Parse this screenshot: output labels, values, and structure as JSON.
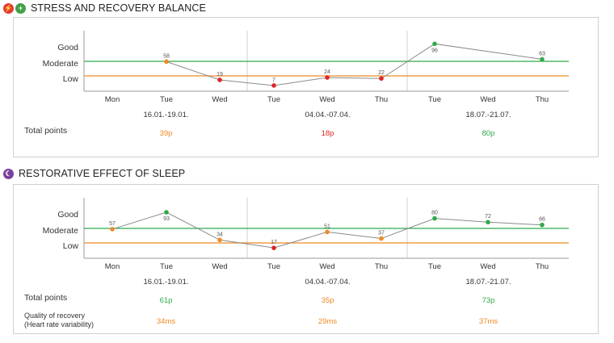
{
  "sections": [
    {
      "title": "STRESS AND RECOVERY BALANCE",
      "icons": [
        {
          "name": "lightning-icon",
          "color": "#e53935",
          "glyph": "⚡"
        },
        {
          "name": "plus-icon",
          "color": "#43a047",
          "glyph": "+"
        }
      ],
      "chart_data": {
        "type": "line",
        "y_categories": [
          "Good",
          "Moderate",
          "Low"
        ],
        "reference_lines": [
          {
            "level": "Moderate",
            "color": "#2eaa4a"
          },
          {
            "level": "Low",
            "color": "#ee8a23"
          }
        ],
        "x": [
          "Mon",
          "Tue",
          "Wed",
          "Tue",
          "Wed",
          "Thu",
          "Tue",
          "Wed",
          "Thu"
        ],
        "points": [
          {
            "index": 1,
            "value": 58,
            "label": "58",
            "color": "#ee8a23"
          },
          {
            "index": 2,
            "value": 19,
            "label": "19",
            "color": "#e02424"
          },
          {
            "index": 3,
            "value": 7,
            "label": "7",
            "color": "#e02424"
          },
          {
            "index": 4,
            "value": 24,
            "label": "24",
            "color": "#e02424"
          },
          {
            "index": 5,
            "value": 22,
            "label": "22",
            "color": "#e02424"
          },
          {
            "index": 6,
            "value": 96,
            "label": "96",
            "color": "#2eaa4a"
          },
          {
            "index": 8,
            "value": 63,
            "label": "63",
            "color": "#2eaa4a"
          }
        ],
        "groups": [
          {
            "label": "16.01.-19.01.",
            "start": 0,
            "end": 2
          },
          {
            "label": "04.04.-07.04.",
            "start": 3,
            "end": 5
          },
          {
            "label": "18.07.-21.07.",
            "start": 6,
            "end": 8
          }
        ]
      },
      "rows": [
        {
          "label": "Total points",
          "values": [
            {
              "text": "39p",
              "color": "#ee8a23"
            },
            {
              "text": "18p",
              "color": "#e02424"
            },
            {
              "text": "80p",
              "color": "#2eaa4a"
            }
          ]
        }
      ]
    },
    {
      "title": "RESTORATIVE EFFECT OF SLEEP",
      "icons": [
        {
          "name": "moon-icon",
          "color": "#7b3f9e",
          "glyph": "☾"
        }
      ],
      "chart_data": {
        "type": "line",
        "y_categories": [
          "Good",
          "Moderate",
          "Low"
        ],
        "reference_lines": [
          {
            "level": "Moderate",
            "color": "#2eaa4a"
          },
          {
            "level": "Low",
            "color": "#ee8a23"
          }
        ],
        "x": [
          "Mon",
          "Tue",
          "Wed",
          "Tue",
          "Wed",
          "Thu",
          "Tue",
          "Wed",
          "Thu"
        ],
        "points": [
          {
            "index": 0,
            "value": 57,
            "label": "57",
            "color": "#ee8a23"
          },
          {
            "index": 1,
            "value": 93,
            "label": "93",
            "color": "#2eaa4a"
          },
          {
            "index": 2,
            "value": 34,
            "label": "34",
            "color": "#ee8a23"
          },
          {
            "index": 3,
            "value": 17,
            "label": "17",
            "color": "#e02424"
          },
          {
            "index": 4,
            "value": 51,
            "label": "51",
            "color": "#ee8a23"
          },
          {
            "index": 5,
            "value": 37,
            "label": "37",
            "color": "#ee8a23"
          },
          {
            "index": 6,
            "value": 80,
            "label": "80",
            "color": "#2eaa4a"
          },
          {
            "index": 7,
            "value": 72,
            "label": "72",
            "color": "#2eaa4a"
          },
          {
            "index": 8,
            "value": 66,
            "label": "66",
            "color": "#2eaa4a"
          }
        ],
        "groups": [
          {
            "label": "16.01.-19.01.",
            "start": 0,
            "end": 2
          },
          {
            "label": "04.04.-07.04.",
            "start": 3,
            "end": 5
          },
          {
            "label": "18.07.-21.07.",
            "start": 6,
            "end": 8
          }
        ]
      },
      "rows": [
        {
          "label": "Total points",
          "values": [
            {
              "text": "61p",
              "color": "#2eaa4a"
            },
            {
              "text": "35p",
              "color": "#ee8a23"
            },
            {
              "text": "73p",
              "color": "#2eaa4a"
            }
          ]
        },
        {
          "label": "Quality of recovery",
          "sublabel": "(Heart rate variability)",
          "values": [
            {
              "text": "34ms",
              "color": "#ee8a23"
            },
            {
              "text": "29ms",
              "color": "#ee8a23"
            },
            {
              "text": "37ms",
              "color": "#ee8a23"
            }
          ]
        }
      ]
    }
  ]
}
